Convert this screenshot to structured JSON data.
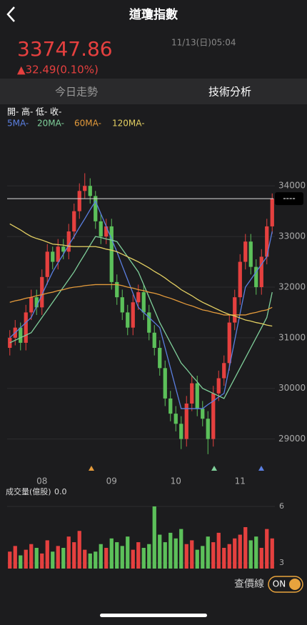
{
  "header": {
    "title": "道瓊指數"
  },
  "quote": {
    "price": "33747.86",
    "change": "▲32.49(0.10%)",
    "time": "11/13(日)05:04"
  },
  "tabs": [
    "今日走勢",
    "技術分析"
  ],
  "footer": {
    "label": "查價線",
    "toggle": "ON"
  },
  "chart_data": [
    {
      "type": "candlestick",
      "ohlc_labels": [
        "開-",
        "高-",
        "低-",
        "收-"
      ],
      "up_color": "#e5403f",
      "down_color": "#5cc05a",
      "categories": [
        null,
        null,
        null,
        null,
        null,
        null,
        "08",
        null,
        null,
        null,
        null,
        null,
        null,
        null,
        null,
        null,
        null,
        null,
        null,
        "09",
        null,
        null,
        null,
        null,
        null,
        null,
        null,
        null,
        null,
        null,
        null,
        "10",
        null,
        null,
        null,
        null,
        null,
        null,
        null,
        null,
        null,
        null,
        null,
        "11",
        null,
        null,
        null,
        null,
        null,
        null
      ],
      "open": [
        30800,
        31000,
        31200,
        30900,
        31500,
        31800,
        31600,
        32200,
        32700,
        32500,
        32800,
        32700,
        33100,
        33500,
        33900,
        34000,
        33800,
        33300,
        33000,
        33200,
        32100,
        31800,
        31500,
        31200,
        31700,
        31900,
        31500,
        31100,
        30800,
        30400,
        29800,
        29500,
        29300,
        29000,
        29700,
        30100,
        29600,
        29400,
        29000,
        29900,
        30200,
        30500,
        31300,
        31800,
        32500,
        32900,
        32400,
        32000,
        32600,
        33200
      ],
      "high": [
        31150,
        31350,
        31300,
        31650,
        31950,
        31950,
        32350,
        32850,
        32800,
        32950,
        32950,
        33250,
        33650,
        34050,
        34250,
        34150,
        33900,
        33450,
        33350,
        33350,
        32250,
        31950,
        31650,
        31850,
        32050,
        32050,
        31650,
        31250,
        30950,
        30550,
        29950,
        29650,
        29450,
        29850,
        30250,
        30250,
        29750,
        29550,
        30050,
        30350,
        30650,
        31450,
        31950,
        32650,
        33050,
        33050,
        32550,
        32750,
        33350,
        33850
      ],
      "low": [
        30650,
        30850,
        30750,
        30750,
        31350,
        31450,
        31450,
        32050,
        32350,
        32350,
        32550,
        32550,
        32950,
        33350,
        33750,
        33650,
        33150,
        32850,
        32850,
        31950,
        31650,
        31350,
        31050,
        31050,
        31550,
        31350,
        30950,
        30650,
        30250,
        29650,
        29350,
        29150,
        28800,
        28850,
        29550,
        29450,
        29250,
        28700,
        28850,
        29750,
        30050,
        30350,
        31150,
        31650,
        32350,
        32250,
        31850,
        31850,
        32450,
        33050
      ],
      "close": [
        31000,
        31200,
        30900,
        31500,
        31800,
        31600,
        32200,
        32700,
        32500,
        32800,
        32700,
        33100,
        33500,
        33900,
        34000,
        33800,
        33300,
        33000,
        33200,
        32100,
        31800,
        31500,
        31200,
        31700,
        31900,
        31500,
        31100,
        30800,
        30400,
        29800,
        29500,
        29300,
        29000,
        29700,
        30100,
        29600,
        29400,
        29000,
        29900,
        30200,
        30500,
        31300,
        31800,
        32500,
        32900,
        32400,
        32000,
        32600,
        33200,
        33748
      ],
      "series": [
        {
          "name": "5MA-",
          "color": "#5b7fe0",
          "values": [
            31000,
            31100,
            31200,
            31300,
            31400,
            31620,
            31850,
            32080,
            32300,
            32480,
            32650,
            32830,
            33000,
            33180,
            33350,
            33530,
            33700,
            33450,
            33200,
            32950,
            32700,
            32420,
            32150,
            31880,
            31600,
            31500,
            31400,
            31300,
            31200,
            30800,
            30400,
            30000,
            29600,
            29600,
            29600,
            29600,
            29600,
            29680,
            29750,
            29830,
            29900,
            30420,
            30950,
            31480,
            32000,
            32150,
            32300,
            32450,
            32600,
            33100
          ]
        },
        {
          "name": "20MA-",
          "color": "#7fcf9a",
          "values": [
            30900,
            30950,
            31000,
            31050,
            31100,
            31250,
            31400,
            31550,
            31700,
            31850,
            32000,
            32150,
            32300,
            32480,
            32650,
            32830,
            33000,
            32980,
            32950,
            32930,
            32900,
            32750,
            32600,
            32450,
            32300,
            32050,
            31800,
            31550,
            31300,
            31100,
            30900,
            30700,
            30500,
            30380,
            30250,
            30130,
            30000,
            29950,
            29900,
            29850,
            29800,
            30000,
            30200,
            30400,
            30600,
            30800,
            31000,
            31200,
            31400,
            31900
          ]
        },
        {
          "name": "60MA-",
          "color": "#e39a3b",
          "values": [
            31700,
            31730,
            31750,
            31780,
            31800,
            31830,
            31850,
            31880,
            31900,
            31930,
            31950,
            31980,
            32000,
            32010,
            32030,
            32040,
            32050,
            32050,
            32050,
            32050,
            32050,
            32030,
            32000,
            31980,
            31950,
            31930,
            31900,
            31880,
            31850,
            31810,
            31780,
            31740,
            31700,
            31660,
            31630,
            31590,
            31550,
            31530,
            31500,
            31480,
            31450,
            31450,
            31450,
            31450,
            31450,
            31480,
            31500,
            31530,
            31550,
            31600
          ]
        },
        {
          "name": "120MA-",
          "color": "#e3cf62",
          "values": [
            33250,
            33190,
            33130,
            33060,
            33000,
            32960,
            32930,
            32890,
            32850,
            32840,
            32830,
            32810,
            32800,
            32800,
            32800,
            32800,
            32800,
            32780,
            32750,
            32730,
            32700,
            32650,
            32600,
            32550,
            32500,
            32440,
            32380,
            32310,
            32250,
            32180,
            32100,
            32030,
            31950,
            31890,
            31830,
            31760,
            31700,
            31650,
            31600,
            31550,
            31500,
            31460,
            31430,
            31390,
            31350,
            31330,
            31300,
            31280,
            31250,
            31230
          ]
        }
      ],
      "ref_line": {
        "value": 33747.86,
        "label": "----"
      },
      "ylim": [
        28500,
        34850
      ],
      "yticks": [
        29000,
        30000,
        31000,
        32000,
        33000,
        34000
      ]
    },
    {
      "type": "bar",
      "title": "成交量(億股)",
      "readout": "0.0",
      "values": [
        3.6,
        3.9,
        3.4,
        3.7,
        4.0,
        3.8,
        3.5,
        4.2,
        3.6,
        3.9,
        3.8,
        4.4,
        4.1,
        4.7,
        3.7,
        3.5,
        3.6,
        4.0,
        3.8,
        4.3,
        4.1,
        3.9,
        4.4,
        3.7,
        4.1,
        3.8,
        4.0,
        6.0,
        4.5,
        4.1,
        4.6,
        4.3,
        4.8,
        4.0,
        4.2,
        3.7,
        3.9,
        4.4,
        4.1,
        4.6,
        3.8,
        4.0,
        4.3,
        4.5,
        4.9,
        4.2,
        4.4,
        3.8,
        4.8,
        4.3
      ],
      "ylim": [
        2.7,
        6.2
      ],
      "yticks": [
        3,
        6
      ]
    }
  ]
}
